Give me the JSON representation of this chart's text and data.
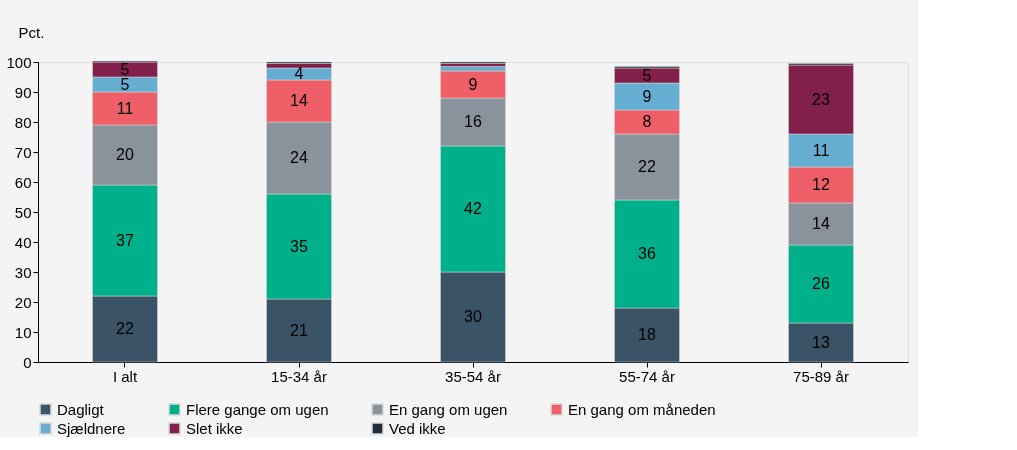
{
  "chart_data": {
    "type": "bar",
    "stacked": true,
    "ylabel": "Pct.",
    "categories": [
      "I alt",
      "15-34 år",
      "35-54 år",
      "55-74 år",
      "75-89 år"
    ],
    "ylim": [
      0,
      100
    ],
    "yticks": [
      0,
      10,
      20,
      30,
      40,
      50,
      60,
      70,
      80,
      90,
      100
    ],
    "grid": false,
    "legend": "bottom",
    "series": [
      {
        "name": "Dagligt",
        "color": "#3b5366",
        "values": [
          22,
          21,
          30,
          18,
          13
        ],
        "value_labels": [
          "22",
          "21",
          "30",
          "18",
          "13"
        ]
      },
      {
        "name": "Flere gange om ugen",
        "color": "#00b08a",
        "values": [
          37,
          35,
          42,
          36,
          26
        ],
        "value_labels": [
          "37",
          "35",
          "42",
          "36",
          "26"
        ]
      },
      {
        "name": "En gang om ugen",
        "color": "#8a939c",
        "values": [
          20,
          24,
          16,
          22,
          14
        ],
        "value_labels": [
          "20",
          "24",
          "16",
          "22",
          "14"
        ]
      },
      {
        "name": "En gang om måneden",
        "color": "#ef5f67",
        "values": [
          11,
          14,
          9,
          8,
          12
        ],
        "value_labels": [
          "11",
          "14",
          "9",
          "8",
          "12"
        ]
      },
      {
        "name": "Sjældnere",
        "color": "#66aed1",
        "values": [
          5,
          4,
          1.5,
          9,
          11
        ],
        "value_labels": [
          "5",
          "4",
          null,
          "9",
          "11"
        ]
      },
      {
        "name": "Slet ikke",
        "color": "#82204c",
        "values": [
          5,
          1.5,
          1,
          5,
          23
        ],
        "value_labels": [
          "5",
          null,
          null,
          "5",
          "23"
        ]
      },
      {
        "name": "Ved ikke",
        "color": "#1e2d38",
        "values": [
          0.3,
          0.5,
          0.5,
          0.5,
          0.5
        ],
        "value_labels": [
          null,
          null,
          null,
          null,
          null
        ]
      }
    ]
  }
}
